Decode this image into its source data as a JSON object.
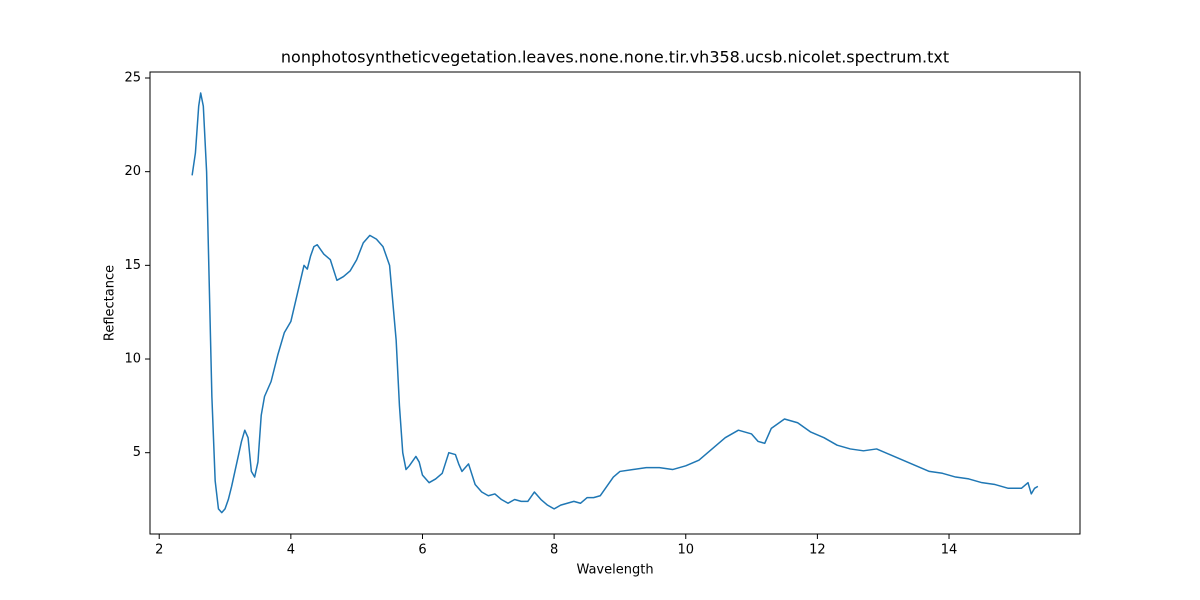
{
  "chart_data": {
    "type": "line",
    "title": "nonphotosyntheticvegetation.leaves.none.none.tir.vh358.ucsb.nicolet.spectrum.txt",
    "x_label": "Wavelength",
    "y_label": "Reflectance",
    "xlim": [
      1.86,
      15.99
    ],
    "ylim": [
      0.66,
      25.32
    ],
    "xticks": [
      2,
      4,
      6,
      8,
      10,
      12,
      14
    ],
    "yticks": [
      5,
      10,
      15,
      20,
      25
    ],
    "series": [
      {
        "color": "#1f77b4",
        "x": [
          2.5,
          2.55,
          2.6,
          2.63,
          2.67,
          2.72,
          2.76,
          2.8,
          2.85,
          2.9,
          2.95,
          3.0,
          3.05,
          3.1,
          3.15,
          3.2,
          3.25,
          3.3,
          3.35,
          3.4,
          3.45,
          3.5,
          3.55,
          3.6,
          3.7,
          3.8,
          3.9,
          4.0,
          4.1,
          4.2,
          4.25,
          4.3,
          4.35,
          4.4,
          4.5,
          4.6,
          4.7,
          4.8,
          4.9,
          5.0,
          5.1,
          5.2,
          5.3,
          5.4,
          5.5,
          5.6,
          5.65,
          5.7,
          5.75,
          5.8,
          5.9,
          5.95,
          6.0,
          6.1,
          6.2,
          6.3,
          6.4,
          6.5,
          6.55,
          6.6,
          6.7,
          6.8,
          6.9,
          7.0,
          7.1,
          7.2,
          7.3,
          7.4,
          7.5,
          7.6,
          7.7,
          7.8,
          7.9,
          8.0,
          8.1,
          8.2,
          8.3,
          8.4,
          8.5,
          8.6,
          8.7,
          8.8,
          8.9,
          9.0,
          9.2,
          9.4,
          9.6,
          9.8,
          10.0,
          10.2,
          10.4,
          10.6,
          10.8,
          11.0,
          11.1,
          11.2,
          11.3,
          11.5,
          11.7,
          11.9,
          12.1,
          12.3,
          12.5,
          12.7,
          12.9,
          13.1,
          13.3,
          13.5,
          13.7,
          13.9,
          14.1,
          14.3,
          14.5,
          14.7,
          14.9,
          15.1,
          15.2,
          15.25,
          15.3,
          15.35
        ],
        "values": [
          19.8,
          21,
          23.5,
          24.2,
          23.5,
          20,
          14,
          8,
          3.5,
          2.0,
          1.8,
          2.0,
          2.5,
          3.2,
          4.0,
          4.8,
          5.6,
          6.2,
          5.8,
          4.0,
          3.7,
          4.5,
          7.0,
          8.0,
          8.8,
          10.2,
          11.4,
          12.0,
          13.5,
          15.0,
          14.8,
          15.5,
          16.0,
          16.1,
          15.6,
          15.3,
          14.2,
          14.4,
          14.7,
          15.3,
          16.2,
          16.6,
          16.4,
          16.0,
          15.0,
          11.0,
          7.5,
          5.0,
          4.1,
          4.3,
          4.8,
          4.5,
          3.8,
          3.4,
          3.6,
          3.9,
          5.0,
          4.9,
          4.4,
          4.0,
          4.4,
          3.3,
          2.9,
          2.7,
          2.8,
          2.5,
          2.3,
          2.5,
          2.4,
          2.4,
          2.9,
          2.5,
          2.2,
          2.0,
          2.2,
          2.3,
          2.4,
          2.3,
          2.6,
          2.6,
          2.7,
          3.2,
          3.7,
          4.0,
          4.1,
          4.2,
          4.2,
          4.1,
          4.3,
          4.6,
          5.2,
          5.8,
          6.2,
          6.0,
          5.6,
          5.5,
          6.3,
          6.8,
          6.6,
          6.1,
          5.8,
          5.4,
          5.2,
          5.1,
          5.2,
          4.9,
          4.6,
          4.3,
          4.0,
          3.9,
          3.7,
          3.6,
          3.4,
          3.3,
          3.1,
          3.1,
          3.4,
          2.8,
          3.1,
          3.2
        ]
      }
    ]
  }
}
